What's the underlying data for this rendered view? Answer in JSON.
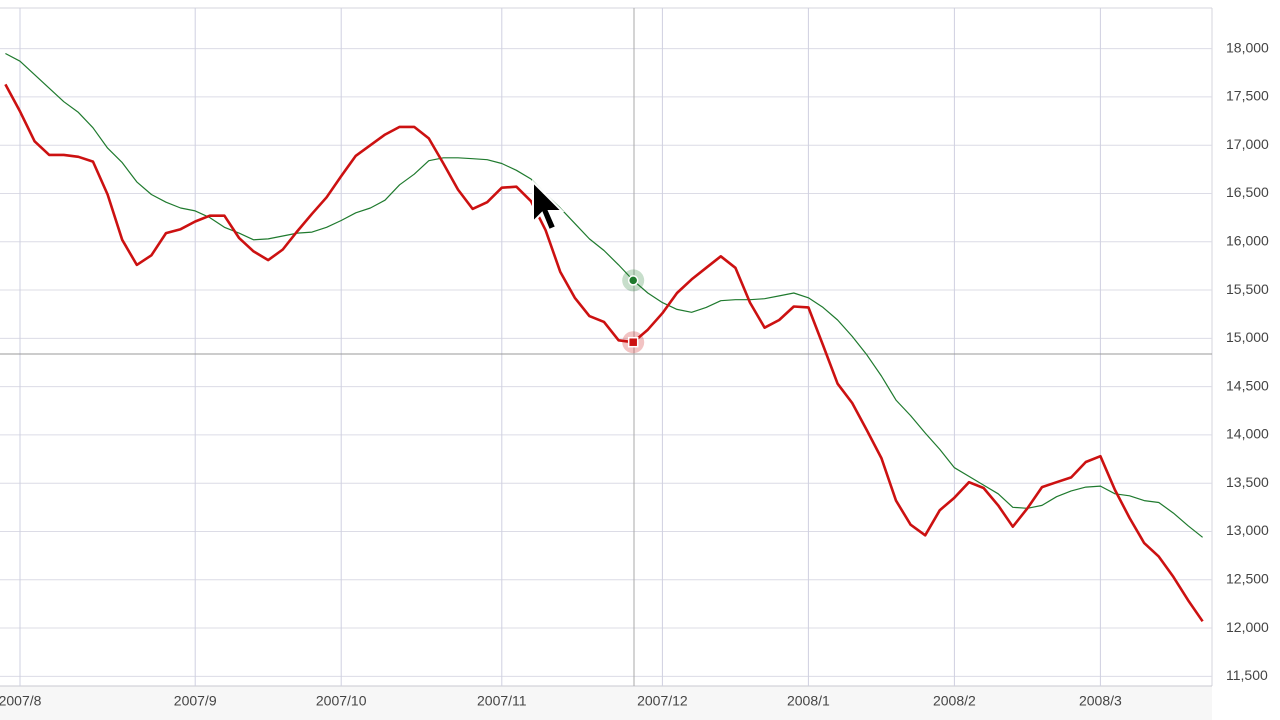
{
  "chart_data": {
    "type": "line",
    "categories": [
      null,
      "2007/8",
      null,
      null,
      null,
      null,
      null,
      null,
      null,
      null,
      null,
      null,
      null,
      "2007/9",
      null,
      null,
      null,
      null,
      null,
      null,
      null,
      null,
      null,
      "2007/10",
      null,
      null,
      null,
      null,
      null,
      null,
      null,
      null,
      null,
      null,
      "2007/11",
      null,
      null,
      null,
      null,
      null,
      null,
      null,
      null,
      null,
      null,
      "2007/12",
      null,
      null,
      null,
      null,
      null,
      null,
      null,
      null,
      null,
      "2008/1",
      null,
      null,
      null,
      null,
      null,
      null,
      null,
      null,
      null,
      "2008/2",
      null,
      null,
      null,
      null,
      null,
      null,
      null,
      null,
      null,
      "2008/3",
      null,
      null,
      null,
      null,
      null,
      null,
      null
    ],
    "series": [
      {
        "color": "#cc1111",
        "values": [
          17630,
          17350,
          17040,
          16900,
          16900,
          16880,
          16830,
          16490,
          16020,
          15760,
          15860,
          16090,
          16130,
          16210,
          16270,
          16270,
          16040,
          15900,
          15810,
          15920,
          16110,
          16290,
          16460,
          16680,
          16890,
          17000,
          17110,
          17190,
          17190,
          17070,
          16810,
          16540,
          16340,
          16410,
          16560,
          16570,
          16420,
          16120,
          15690,
          15420,
          15230,
          15170,
          14980,
          14960,
          15090,
          15260,
          15470,
          15610,
          15730,
          15850,
          15730,
          15370,
          15110,
          15190,
          15330,
          15320,
          14930,
          14530,
          14330,
          14050,
          13760,
          13320,
          13070,
          12960,
          13220,
          13350,
          13510,
          13450,
          13270,
          13050,
          13240,
          13460,
          13510,
          13560,
          13720,
          13780,
          13430,
          13140,
          12880,
          12740,
          12530,
          12290,
          12070
        ]
      },
      {
        "color": "#1f7a2e",
        "values": [
          17950,
          17870,
          17730,
          17590,
          17450,
          17340,
          17180,
          16970,
          16820,
          16620,
          16490,
          16410,
          16350,
          16320,
          16250,
          16150,
          16090,
          16020,
          16030,
          16060,
          16090,
          16100,
          16150,
          16220,
          16300,
          16350,
          16430,
          16590,
          16700,
          16840,
          16870,
          16870,
          16860,
          16850,
          16810,
          16740,
          16650,
          16490,
          16350,
          16190,
          16030,
          15910,
          15760,
          15600,
          15470,
          15370,
          15300,
          15270,
          15320,
          15390,
          15400,
          15400,
          15410,
          15440,
          15470,
          15420,
          15320,
          15190,
          15020,
          14830,
          14610,
          14360,
          14200,
          14020,
          13850,
          13660,
          13570,
          13480,
          13390,
          13250,
          13240,
          13270,
          13360,
          13420,
          13460,
          13470,
          13390,
          13370,
          13320,
          13300,
          13190,
          13060,
          12940
        ]
      }
    ],
    "ylim": [
      11400,
      18400
    ],
    "yticks": [
      {
        "value": 11500,
        "label": "11,500"
      },
      {
        "value": 12000,
        "label": "12,000"
      },
      {
        "value": 12500,
        "label": "12,500"
      },
      {
        "value": 13000,
        "label": "13,000"
      },
      {
        "value": 13500,
        "label": "13,500"
      },
      {
        "value": 14000,
        "label": "14,000"
      },
      {
        "value": 14500,
        "label": "14,500"
      },
      {
        "value": 15000,
        "label": "15,000"
      },
      {
        "value": 15500,
        "label": "15,500"
      },
      {
        "value": 16000,
        "label": "16,000"
      },
      {
        "value": 16500,
        "label": "16,500"
      },
      {
        "value": 17000,
        "label": "17,000"
      },
      {
        "value": 17500,
        "label": "17,500"
      },
      {
        "value": 18000,
        "label": "18,000"
      }
    ],
    "grid": true
  }
}
